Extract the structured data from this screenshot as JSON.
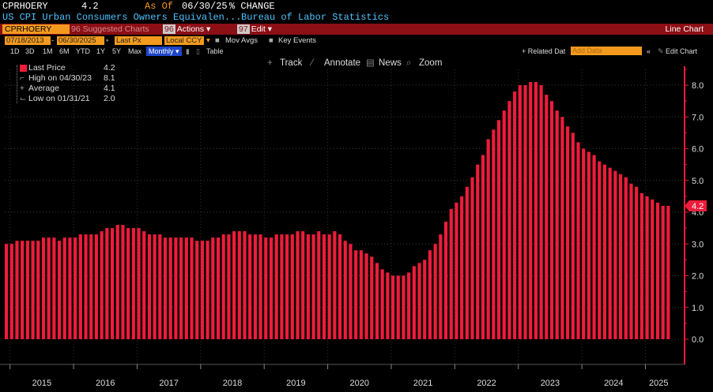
{
  "header": {
    "ticker": "CPRHOERY",
    "last": "4.2",
    "as_of_label": "As Of",
    "as_of_date": "06/30/25",
    "mode": "% CHANGE",
    "description": "US CPI Urban Consumers Owners Equivalen...",
    "source": "Bureau of Labor Statistics"
  },
  "toolbar": {
    "index": "CPRHOERY Index",
    "suggested": "96 Suggested Charts",
    "actions_num": "96",
    "actions": "Actions",
    "edit_num": "97",
    "edit": "Edit",
    "chart_type": "Line Chart"
  },
  "settings": {
    "start_date": "07/18/2013",
    "end_date": "06/30/2025",
    "field": "Last Px",
    "currency": "Local CCY",
    "mov_avgs": "Mov Avgs",
    "key_events": "Key Events"
  },
  "periods": [
    "1D",
    "3D",
    "1M",
    "6M",
    "YTD",
    "1Y",
    "5Y",
    "Max"
  ],
  "frequency": "Monthly",
  "table_label": "Table",
  "related_data": "+ Related Dat",
  "add_data_placeholder": "Add Data",
  "edit_chart": "Edit Chart",
  "tools": {
    "track": "Track",
    "annotate": "Annotate",
    "news": "News",
    "zoom": "Zoom"
  },
  "legend": {
    "last_label": "Last Price",
    "last_value": "4.2",
    "high_label": "High on 04/30/23",
    "high_value": "8.1",
    "avg_label": "Average",
    "avg_value": "4.1",
    "low_label": "Low on 01/31/21",
    "low_value": "2.0"
  },
  "colors": {
    "bar": "#ef1c3a",
    "accent": "#f39a1e",
    "header_text": "#4fc3ff",
    "toolbar_bg": "#8c0f16"
  },
  "chart_data": {
    "type": "bar",
    "title": "US CPI Urban Consumers Owners Equivalent Rent YoY % Change",
    "frequency": "monthly",
    "ylim": [
      0,
      8.6
    ],
    "yticks": [
      "0.0",
      "1.0",
      "2.0",
      "3.0",
      "4.0",
      "5.0",
      "6.0",
      "7.0",
      "8.0"
    ],
    "last_tag": "4.2",
    "years": [
      "2015",
      "2016",
      "2017",
      "2018",
      "2019",
      "2020",
      "2021",
      "2022",
      "2023",
      "2024",
      "2025"
    ],
    "start": "2014-12",
    "values": [
      3.0,
      3.0,
      3.1,
      3.1,
      3.1,
      3.1,
      3.1,
      3.2,
      3.2,
      3.2,
      3.1,
      3.2,
      3.2,
      3.2,
      3.3,
      3.3,
      3.3,
      3.3,
      3.4,
      3.5,
      3.5,
      3.6,
      3.6,
      3.5,
      3.5,
      3.5,
      3.4,
      3.3,
      3.3,
      3.3,
      3.2,
      3.2,
      3.2,
      3.2,
      3.2,
      3.2,
      3.1,
      3.1,
      3.1,
      3.2,
      3.2,
      3.3,
      3.3,
      3.4,
      3.4,
      3.4,
      3.3,
      3.3,
      3.3,
      3.2,
      3.2,
      3.3,
      3.3,
      3.3,
      3.3,
      3.4,
      3.4,
      3.3,
      3.3,
      3.4,
      3.3,
      3.3,
      3.4,
      3.3,
      3.1,
      3.0,
      2.8,
      2.8,
      2.7,
      2.6,
      2.4,
      2.2,
      2.1,
      2.0,
      2.0,
      2.0,
      2.1,
      2.3,
      2.4,
      2.5,
      2.8,
      3.0,
      3.3,
      3.7,
      4.1,
      4.3,
      4.5,
      4.8,
      5.1,
      5.5,
      5.8,
      6.3,
      6.6,
      6.9,
      7.2,
      7.5,
      7.8,
      8.0,
      8.0,
      8.1,
      8.1,
      8.0,
      7.7,
      7.5,
      7.2,
      7.0,
      6.7,
      6.5,
      6.2,
      6.0,
      5.9,
      5.8,
      5.6,
      5.5,
      5.4,
      5.3,
      5.2,
      5.1,
      4.9,
      4.8,
      4.6,
      4.5,
      4.4,
      4.3,
      4.2,
      4.2
    ]
  }
}
